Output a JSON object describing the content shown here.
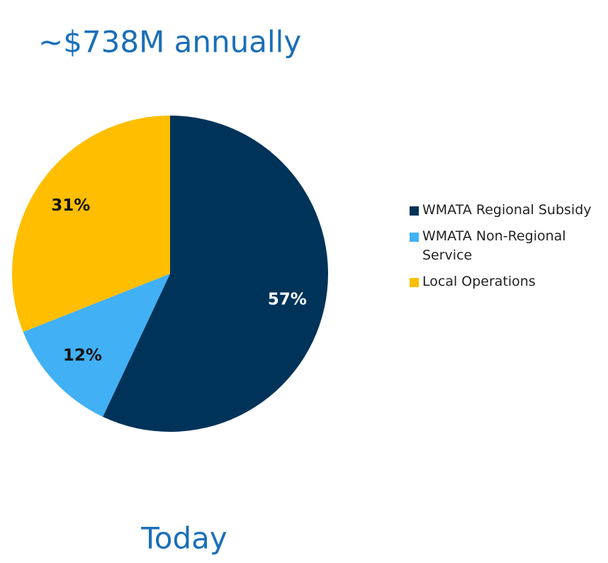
{
  "chart_data": {
    "type": "pie",
    "title": "~$738M annually",
    "caption": "Today",
    "categories": [
      "WMATA Regional Subsidy",
      "WMATA Non-Regional Service",
      "Local Operations"
    ],
    "values": [
      57,
      12,
      31
    ],
    "value_labels": [
      "57%",
      "12%",
      "31%"
    ],
    "colors": [
      "#003359",
      "#41b0f5",
      "#ffbe00"
    ],
    "label_colors": [
      "#ffffff",
      "#111111",
      "#111111"
    ],
    "legend": "right"
  }
}
